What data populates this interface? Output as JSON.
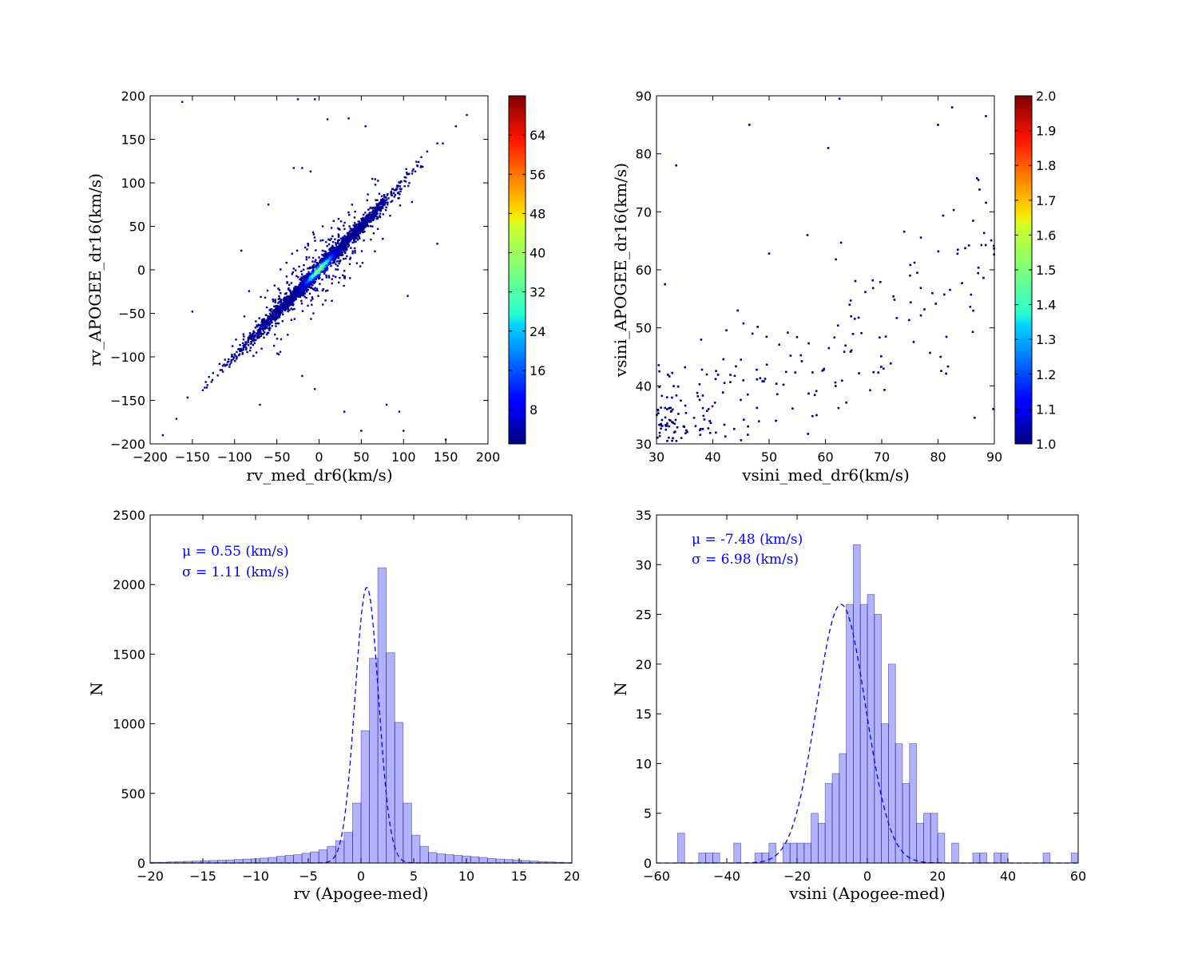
{
  "chart_data": [
    {
      "type": "scatter",
      "xlabel": "rv_med_dr6(km/s)",
      "ylabel": "rv_APOGEE_dr16(km/s)",
      "xlim": [
        -200,
        200
      ],
      "ylim": [
        -200,
        200
      ],
      "xticks": [
        -200,
        -150,
        -100,
        -50,
        0,
        50,
        100,
        150,
        200
      ],
      "yticks": [
        -200,
        -150,
        -100,
        -50,
        0,
        50,
        100,
        150,
        200
      ],
      "xtick_labels": [
        "−200",
        "−150",
        "−100",
        "−50",
        "0",
        "50",
        "100",
        "150",
        "200"
      ],
      "ytick_labels": [
        "−200",
        "−150",
        "−100",
        "−50",
        "0",
        "50",
        "100",
        "150",
        "200"
      ],
      "colorbar": {
        "colormap": "jet",
        "range": [
          1,
          72
        ],
        "ticks": [
          8,
          16,
          24,
          32,
          40,
          48,
          56,
          64
        ],
        "tick_labels": [
          "8",
          "16",
          "24",
          "32",
          "40",
          "48",
          "56",
          "64"
        ]
      },
      "description_points": "dense diagonal distribution about y = x with outliers",
      "outliers": [
        [
          -162,
          193
        ],
        [
          -25,
          196
        ],
        [
          -5,
          196
        ],
        [
          10,
          173
        ],
        [
          35,
          174
        ],
        [
          55,
          165
        ],
        [
          162,
          165
        ],
        [
          175,
          178
        ],
        [
          -10,
          113
        ],
        [
          -20,
          117
        ],
        [
          -30,
          117
        ],
        [
          -185,
          -190
        ],
        [
          -150,
          -48
        ],
        [
          -92,
          22
        ],
        [
          -60,
          75
        ],
        [
          -70,
          -155
        ],
        [
          -5,
          -137
        ],
        [
          -20,
          -122
        ],
        [
          30,
          -163
        ],
        [
          50,
          -185
        ],
        [
          80,
          -155
        ],
        [
          95,
          -163
        ],
        [
          100,
          -185
        ],
        [
          140,
          30
        ],
        [
          110,
          78
        ],
        [
          105,
          -30
        ],
        [
          150,
          -195
        ]
      ],
      "grid": false
    },
    {
      "type": "scatter",
      "xlabel": "vsini_med_dr6(km/s)",
      "ylabel": "vsini_APOGEE_dr16(km/s)",
      "xlim": [
        30,
        90
      ],
      "ylim": [
        30,
        90
      ],
      "xticks": [
        30,
        40,
        50,
        60,
        70,
        80,
        90
      ],
      "yticks": [
        30,
        40,
        50,
        60,
        70,
        80,
        90
      ],
      "xtick_labels": [
        "30",
        "40",
        "50",
        "60",
        "70",
        "80",
        "90"
      ],
      "ytick_labels": [
        "30",
        "40",
        "50",
        "60",
        "70",
        "80",
        "90"
      ],
      "colorbar": {
        "colormap": "jet",
        "range": [
          1.0,
          2.0
        ],
        "ticks": [
          1.0,
          1.1,
          1.2,
          1.3,
          1.4,
          1.5,
          1.6,
          1.7,
          1.8,
          1.9,
          2.0
        ],
        "tick_labels": [
          "1.0",
          "1.1",
          "1.2",
          "1.3",
          "1.4",
          "1.5",
          "1.6",
          "1.7",
          "1.8",
          "1.9",
          "2.0"
        ]
      },
      "grid": false
    },
    {
      "type": "bar",
      "xlabel": "rv (Apogee-med)",
      "ylabel": "N",
      "xlim": [
        -20,
        20
      ],
      "ylim": [
        0,
        2500
      ],
      "xticks": [
        -20,
        -15,
        -10,
        -5,
        0,
        5,
        10,
        15,
        20
      ],
      "yticks": [
        0,
        500,
        1000,
        1500,
        2000,
        2500
      ],
      "xtick_labels": [
        "−20",
        "−15",
        "−10",
        "−5",
        "0",
        "5",
        "10",
        "15",
        "20"
      ],
      "ytick_labels": [
        "0",
        "500",
        "1000",
        "1500",
        "2000",
        "2500"
      ],
      "bin_start": -20,
      "bin_width": 0.8,
      "values": [
        5,
        5,
        8,
        10,
        12,
        14,
        16,
        18,
        20,
        22,
        25,
        28,
        30,
        35,
        40,
        48,
        55,
        60,
        70,
        80,
        95,
        120,
        160,
        220,
        430,
        950,
        1470,
        2120,
        1510,
        1010,
        430,
        200,
        120,
        75,
        65,
        60,
        55,
        50,
        45,
        40,
        32,
        28,
        25,
        22,
        18,
        14,
        10,
        8,
        5,
        3
      ],
      "annotations": [
        "μ = 0.55 (km/s)",
        "σ = 1.11 (km/s)"
      ],
      "fit": {
        "type": "gaussian",
        "mu": 0.55,
        "sigma": 1.11,
        "peak": 1980
      },
      "grid": false
    },
    {
      "type": "bar",
      "xlabel": "vsini (Apogee-med)",
      "ylabel": "N",
      "xlim": [
        -60,
        60
      ],
      "ylim": [
        0,
        35
      ],
      "xticks": [
        -60,
        -40,
        -20,
        0,
        20,
        40,
        60
      ],
      "yticks": [
        0,
        5,
        10,
        15,
        20,
        25,
        30,
        35
      ],
      "xtick_labels": [
        "−60",
        "−40",
        "−20",
        "0",
        "20",
        "40",
        "60"
      ],
      "ytick_labels": [
        "0",
        "5",
        "10",
        "15",
        "20",
        "25",
        "30",
        "35"
      ],
      "bin_start": -56,
      "bin_width": 2,
      "values": [
        0,
        3,
        0,
        0,
        1,
        1,
        1,
        0,
        0,
        2,
        0,
        0,
        1,
        1,
        2,
        0,
        2,
        2,
        2,
        2,
        5,
        4,
        8,
        9,
        11,
        26,
        32,
        26,
        27,
        25,
        14,
        20,
        12,
        8,
        12,
        4,
        5,
        5,
        3,
        0,
        2,
        0,
        0,
        1,
        1,
        0,
        1,
        1,
        0,
        0,
        0,
        0,
        0,
        1,
        0,
        0,
        0,
        1,
        0,
        0
      ],
      "annotations": [
        "μ = -7.48 (km/s)",
        "σ = 6.98 (km/s)"
      ],
      "fit": {
        "type": "gaussian",
        "mu": -7.48,
        "sigma": 6.98,
        "peak": 26
      },
      "grid": false
    }
  ]
}
